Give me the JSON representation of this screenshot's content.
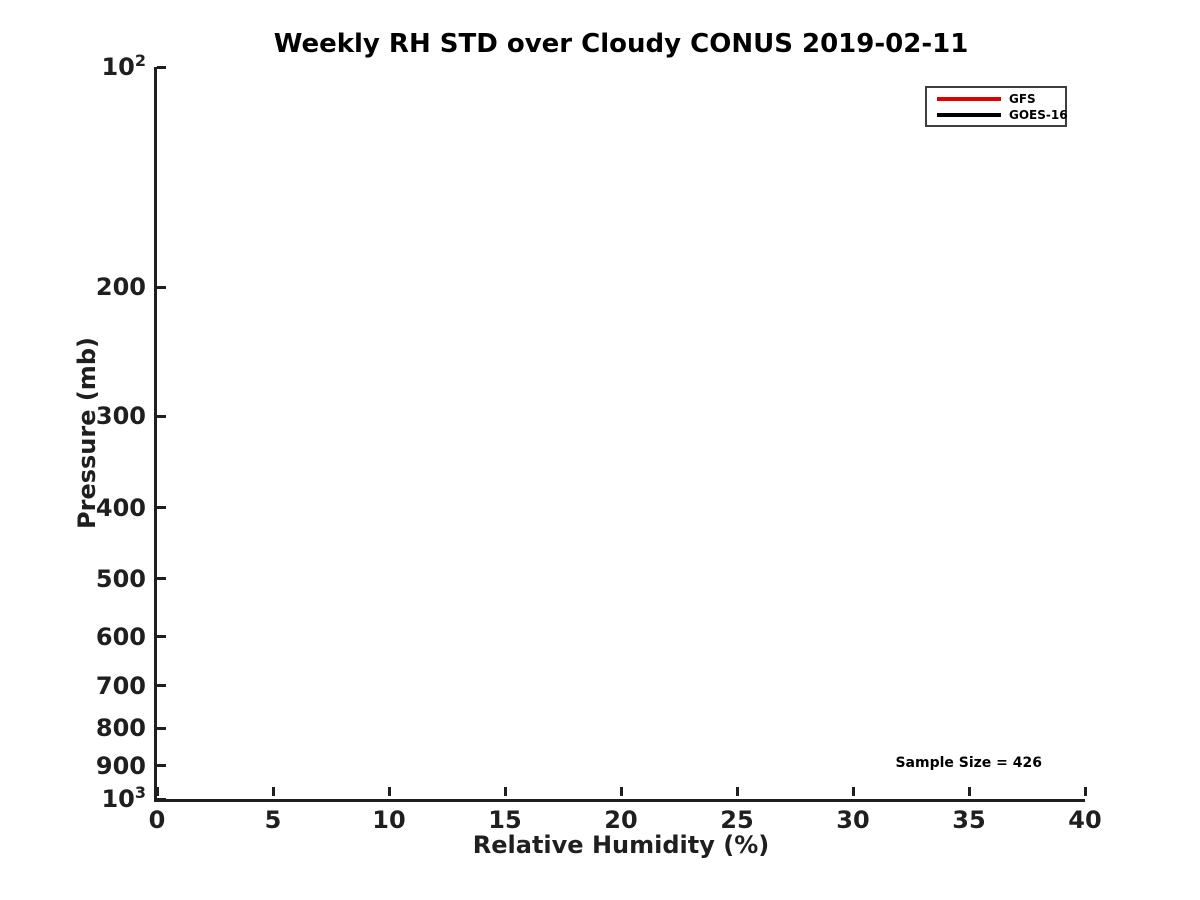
{
  "chart_data": {
    "type": "line",
    "title": "Weekly RH STD over Cloudy CONUS 2019-02-11",
    "xlabel": "Relative Humidity (%)",
    "ylabel": "Pressure (mb)",
    "xlim": [
      0,
      40
    ],
    "x_ticks": [
      0,
      5,
      10,
      15,
      20,
      25,
      30,
      35,
      40
    ],
    "ylim": [
      100,
      1000
    ],
    "y_scale": "log",
    "y_inverted": true,
    "y_ticks": [
      {
        "value": 100,
        "base": "10",
        "exp": "2"
      },
      {
        "value": 200,
        "text": "200"
      },
      {
        "value": 300,
        "text": "300"
      },
      {
        "value": 400,
        "text": "400"
      },
      {
        "value": 500,
        "text": "500"
      },
      {
        "value": 600,
        "text": "600"
      },
      {
        "value": 700,
        "text": "700"
      },
      {
        "value": 800,
        "text": "800"
      },
      {
        "value": 900,
        "text": "900"
      },
      {
        "value": 1000,
        "base": "10",
        "exp": "3"
      }
    ],
    "grid": false,
    "legend_position": "top-right",
    "series": [
      {
        "name": "GFS",
        "color": "#e00000",
        "values": []
      },
      {
        "name": "GOES-16",
        "color": "#000000",
        "values": []
      }
    ],
    "annotations": [
      {
        "text": "Sample Size = 426",
        "anchor": "bottom-right"
      }
    ],
    "colors": {
      "axis": "#1f1f1f",
      "title": "#000000",
      "background": "#ffffff"
    }
  }
}
